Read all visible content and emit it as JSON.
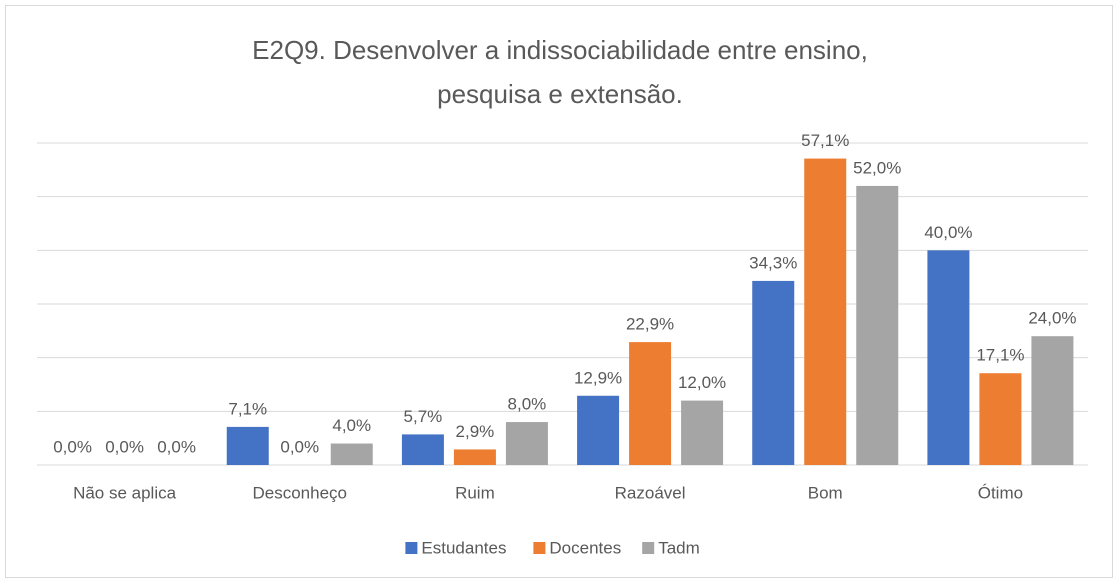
{
  "chart_data": {
    "type": "bar",
    "title": "E2Q9. Desenvolver a indissociabilidade entre ensino, pesquisa e extensão.",
    "categories": [
      "Não se aplica",
      "Desconheço",
      "Ruim",
      "Razoável",
      "Bom",
      "Ótimo"
    ],
    "series": [
      {
        "name": "Estudantes",
        "color": "#4472c4",
        "values": [
          0,
          7.1,
          5.7,
          12.9,
          34.3,
          40.0
        ],
        "value_labels": [
          "0,0%",
          "7,1%",
          "5,7%",
          "12,9%",
          "34,3%",
          "40,0%"
        ]
      },
      {
        "name": "Docentes",
        "color": "#ed7d31",
        "values": [
          0,
          0,
          2.9,
          22.9,
          57.1,
          17.1
        ],
        "value_labels": [
          "0,0%",
          "0,0%",
          "2,9%",
          "22,9%",
          "57,1%",
          "17,1%"
        ]
      },
      {
        "name": "Tadm",
        "color": "#a5a5a5",
        "values": [
          0,
          4.0,
          8.0,
          12.0,
          52.0,
          24.0
        ],
        "value_labels": [
          "0,0%",
          "4,0%",
          "8,0%",
          "12,0%",
          "52,0%",
          "24,0%"
        ]
      }
    ],
    "ylim": [
      0,
      60
    ],
    "yticks": [
      0,
      10,
      20,
      30,
      40,
      50,
      60
    ],
    "grid": true,
    "legend": "bottom"
  }
}
